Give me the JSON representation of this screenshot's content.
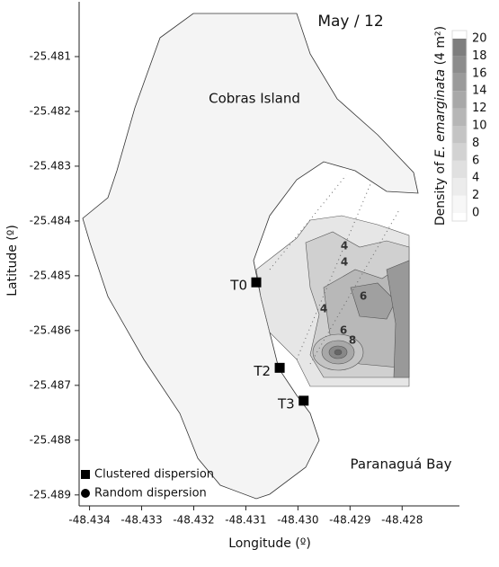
{
  "chart_data": {
    "type": "map",
    "title": "May / 12",
    "x_label": "Longitude (º)",
    "y_label": "Latitude (º)",
    "xlim": [
      -48.4342,
      -48.4269
    ],
    "ylim": [
      -25.4892,
      -25.48
    ],
    "xticks": [
      -48.434,
      -48.433,
      -48.432,
      -48.431,
      -48.43,
      -48.429,
      -48.428
    ],
    "yticks": [
      -25.481,
      -25.482,
      -25.483,
      -25.484,
      -25.485,
      -25.486,
      -25.487,
      -25.488,
      -25.489
    ],
    "xtick_labels": [
      "-48.434",
      "-48.433",
      "-48.432",
      "-48.431",
      "-48.430",
      "-48.429",
      "-48.428"
    ],
    "annotations": [
      "Cobras Island",
      "Paranaguá Bay"
    ],
    "contour_labels": [
      "4",
      "4",
      "6",
      "4",
      "6",
      "8"
    ],
    "points": [
      {
        "label": "T0",
        "x": -48.4308,
        "y": -25.48512,
        "marker": "square"
      },
      {
        "label": "T2",
        "x": -48.43035,
        "y": -25.48668,
        "marker": "square"
      },
      {
        "label": "T3",
        "x": -48.42989,
        "y": -25.48728,
        "marker": "square"
      }
    ],
    "legend": [
      {
        "label": "Clustered dispersion",
        "marker": "square"
      },
      {
        "label": "Random dispersion",
        "marker": "circle"
      }
    ],
    "colorbar": {
      "label": [
        "Density of ",
        "E. emarginata",
        " (4 m²)"
      ],
      "lim": [
        0,
        20
      ],
      "ticks": [
        0,
        2,
        4,
        6,
        8,
        10,
        12,
        14,
        16,
        18,
        20
      ],
      "colors": [
        "#f7f7f7",
        "#ececec",
        "#e0e0e0",
        "#d2d2d2",
        "#c4c4c4",
        "#b6b6b6",
        "#a8a8a8",
        "#9a9a9a",
        "#8c8c8c",
        "#7e7e7e"
      ]
    }
  }
}
